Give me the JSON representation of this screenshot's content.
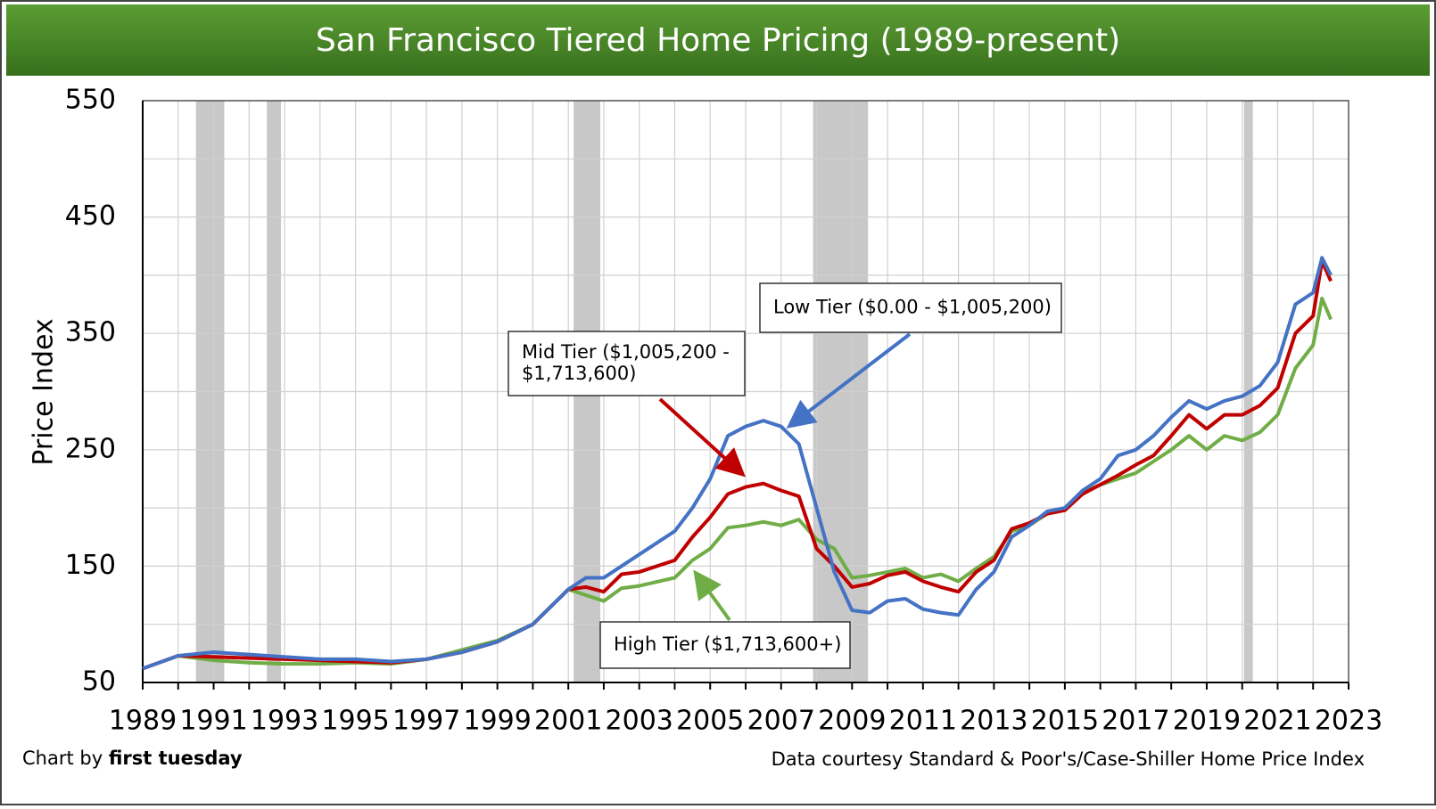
{
  "chart_data": {
    "type": "line",
    "title": "San Francisco Tiered Home Pricing (1989-present)",
    "ylabel": "Price Index",
    "credit": {
      "prefix": "Chart by",
      "name": "first tuesday"
    },
    "source": "Data courtesy Standard & Poor's/Case-Shiller Home Price Index",
    "x": [
      1989,
      1990,
      1991,
      1992,
      1993,
      1994,
      1995,
      1996,
      1997,
      1998,
      1999,
      2000,
      2001,
      2001.5,
      2002,
      2002.5,
      2003,
      2004,
      2004.5,
      2005,
      2005.5,
      2006,
      2006.5,
      2007,
      2007.5,
      2008,
      2008.5,
      2009,
      2009.5,
      2010,
      2010.5,
      2011,
      2011.5,
      2012,
      2012.5,
      2013,
      2013.5,
      2014,
      2014.5,
      2015,
      2015.5,
      2016,
      2016.5,
      2017,
      2017.5,
      2018,
      2018.5,
      2019,
      2019.5,
      2020,
      2020.5,
      2021,
      2021.5,
      2022,
      2022.25,
      2022.5
    ],
    "series": [
      {
        "name": "Low Tier",
        "color": "#4472c4",
        "values": [
          62,
          73,
          76,
          74,
          72,
          70,
          70,
          68,
          70,
          76,
          85,
          100,
          130,
          140,
          140,
          150,
          160,
          180,
          200,
          225,
          262,
          270,
          275,
          270,
          255,
          200,
          145,
          112,
          110,
          120,
          122,
          113,
          110,
          108,
          130,
          145,
          175,
          185,
          197,
          200,
          215,
          225,
          245,
          250,
          262,
          278,
          292,
          285,
          292,
          296,
          305,
          325,
          375,
          385,
          415,
          400
        ]
      },
      {
        "name": "Mid Tier",
        "color": "#c00000",
        "values": [
          62,
          73,
          72,
          71,
          70,
          69,
          68,
          67,
          70,
          76,
          85,
          100,
          130,
          132,
          128,
          143,
          145,
          155,
          175,
          192,
          212,
          218,
          221,
          215,
          210,
          165,
          150,
          132,
          135,
          142,
          145,
          137,
          132,
          128,
          145,
          155,
          182,
          187,
          195,
          198,
          212,
          220,
          228,
          237,
          245,
          262,
          280,
          268,
          280,
          280,
          288,
          303,
          350,
          365,
          412,
          395
        ]
      },
      {
        "name": "High Tier",
        "color": "#70ad47",
        "values": [
          62,
          73,
          69,
          67,
          66,
          66,
          67,
          66,
          70,
          78,
          86,
          100,
          130,
          125,
          120,
          131,
          133,
          140,
          155,
          165,
          183,
          185,
          188,
          185,
          190,
          173,
          165,
          140,
          142,
          145,
          148,
          140,
          143,
          137,
          148,
          158,
          180,
          185,
          195,
          198,
          213,
          220,
          225,
          230,
          240,
          250,
          262,
          250,
          262,
          258,
          265,
          280,
          320,
          340,
          380,
          362
        ]
      }
    ],
    "annotations": [
      {
        "text": [
          "Low Tier ($0.00 - $1,005,200)"
        ]
      },
      {
        "text": [
          "Mid Tier ($1,005,200 -",
          "$1,713,600)"
        ]
      },
      {
        "text": [
          "High Tier ($1,713,600+)"
        ]
      }
    ],
    "recessions": [
      [
        1990.5,
        1991.3
      ],
      [
        1992.5,
        1992.9
      ],
      [
        2001.15,
        2001.9
      ],
      [
        2007.9,
        2009.45
      ],
      [
        2020.05,
        2020.3
      ]
    ],
    "xlim": [
      1989,
      2023
    ],
    "xticks": [
      1989,
      1991,
      1993,
      1995,
      1997,
      1999,
      2001,
      2003,
      2005,
      2007,
      2009,
      2011,
      2013,
      2015,
      2017,
      2019,
      2021,
      2023
    ],
    "x_minor_grid": [
      1990,
      1992,
      1994,
      1996,
      1998,
      2000,
      2002,
      2004,
      2006,
      2008,
      2010,
      2012,
      2014,
      2016,
      2018,
      2020,
      2022
    ],
    "ylim": [
      50,
      550
    ],
    "yticks": [
      50,
      150,
      250,
      350,
      450,
      550
    ],
    "y_minor_grid": [
      100,
      200,
      300,
      400,
      500
    ],
    "grid": true
  }
}
